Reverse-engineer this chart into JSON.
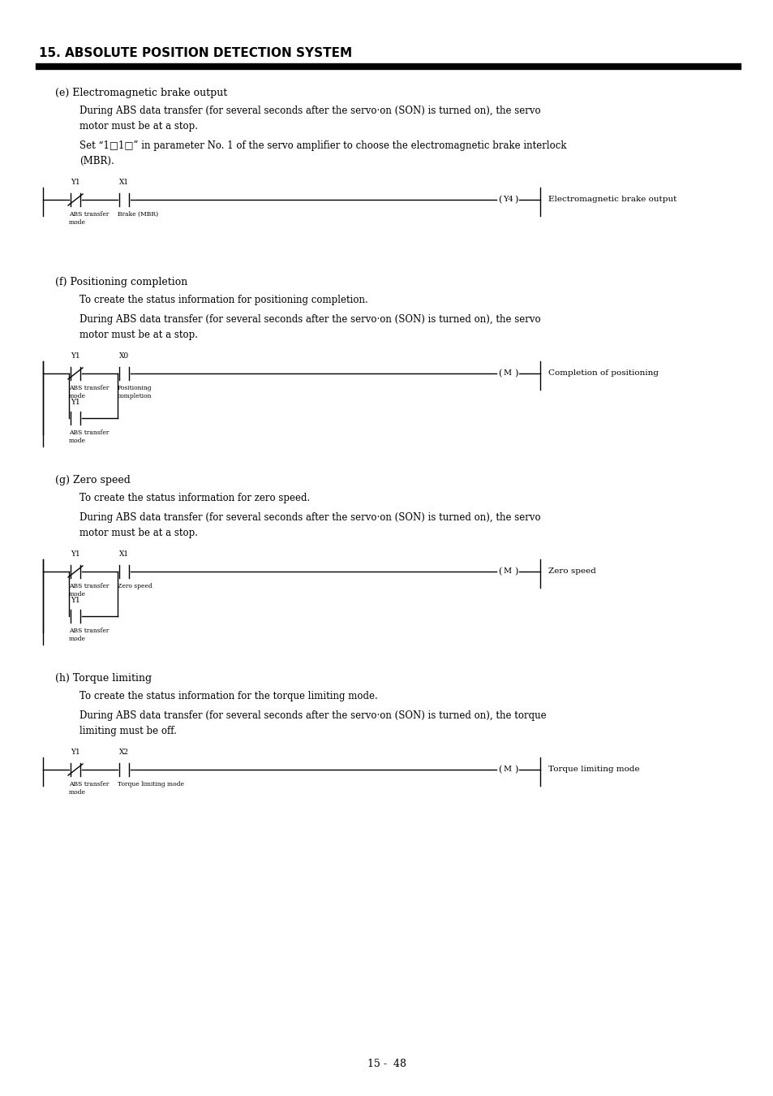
{
  "title": "15. ABSOLUTE POSITION DETECTION SYSTEM",
  "page_number": "15 -  48",
  "background_color": "#ffffff",
  "sections": [
    {
      "label": "(e) Electromagnetic brake output",
      "paragraphs": [
        [
          "During ABS data transfer (for several seconds after the servo·on (SON) is turned on), the servo",
          "motor must be at a stop."
        ],
        [
          "Set “1□1□” in parameter No. 1 of the servo amplifier to choose the electromagnetic brake interlock",
          "(MBR)."
        ]
      ],
      "contacts": [
        {
          "type": "NC",
          "label": "Y1",
          "sub1": "ABS transfer",
          "sub2": "mode"
        },
        {
          "type": "NO",
          "label": "X1",
          "sub1": "Brake (MBR)",
          "sub2": ""
        }
      ],
      "coil_label": "Y4",
      "coil_right_label": "Electromagnetic brake output",
      "has_branch": false
    },
    {
      "label": "(f) Positioning completion",
      "paragraphs": [
        [
          "To create the status information for positioning completion."
        ],
        [
          "During ABS data transfer (for several seconds after the servo·on (SON) is turned on), the servo",
          "motor must be at a stop."
        ]
      ],
      "contacts": [
        {
          "type": "NC",
          "label": "Y1",
          "sub1": "ABS transfer",
          "sub2": "mode"
        },
        {
          "type": "NO",
          "label": "X0",
          "sub1": "Positioning",
          "sub2": "completion"
        }
      ],
      "branch_contact": {
        "type": "NO",
        "label": "Y1",
        "sub1": "ABS transfer",
        "sub2": "mode"
      },
      "coil_label": "M",
      "coil_right_label": "Completion of positioning",
      "has_branch": true
    },
    {
      "label": "(g) Zero speed",
      "paragraphs": [
        [
          "To create the status information for zero speed."
        ],
        [
          "During ABS data transfer (for several seconds after the servo·on (SON) is turned on), the servo",
          "motor must be at a stop."
        ]
      ],
      "contacts": [
        {
          "type": "NC",
          "label": "Y1",
          "sub1": "ABS transfer",
          "sub2": "mode"
        },
        {
          "type": "NO",
          "label": "X1",
          "sub1": "Zero speed",
          "sub2": ""
        }
      ],
      "branch_contact": {
        "type": "NO",
        "label": "Y1",
        "sub1": "ABS transfer",
        "sub2": "mode"
      },
      "coil_label": "M",
      "coil_right_label": "Zero speed",
      "has_branch": true
    },
    {
      "label": "(h) Torque limiting",
      "paragraphs": [
        [
          "To create the status information for the torque limiting mode."
        ],
        [
          "During ABS data transfer (for several seconds after the servo·on (SON) is turned on), the torque",
          "limiting must be off."
        ]
      ],
      "contacts": [
        {
          "type": "NC",
          "label": "Y1",
          "sub1": "ABS transfer",
          "sub2": "mode"
        },
        {
          "type": "NO",
          "label": "X2",
          "sub1": "Torque limiting mode",
          "sub2": ""
        }
      ],
      "coil_label": "M",
      "coil_right_label": "Torque limiting mode",
      "has_branch": false
    }
  ]
}
